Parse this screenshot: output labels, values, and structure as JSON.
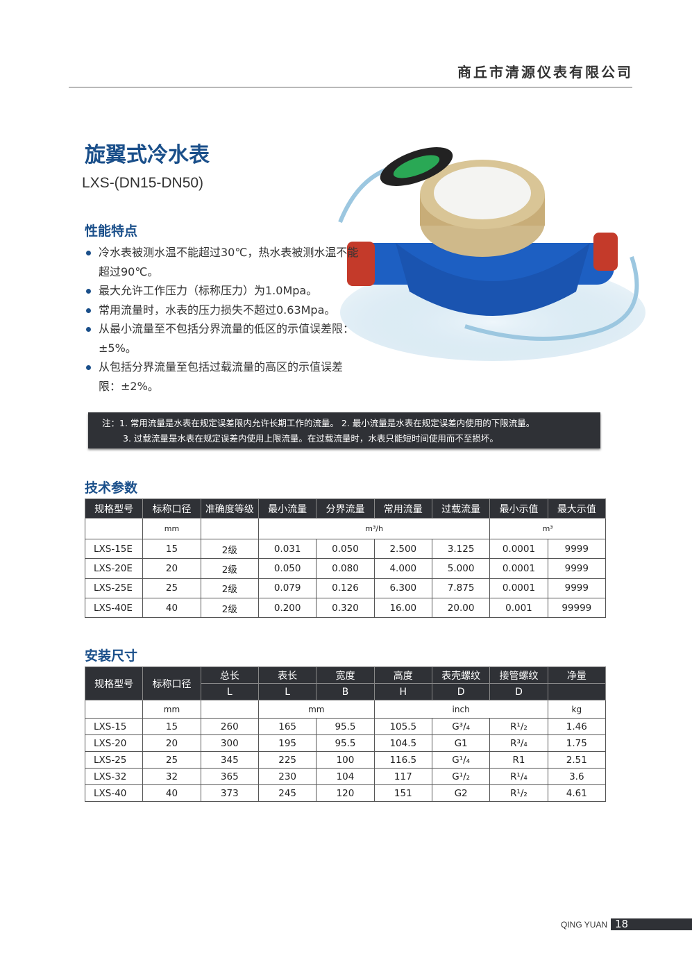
{
  "header": {
    "company": "商丘市清源仪表有限公司"
  },
  "product": {
    "title": "旋翼式冷水表",
    "model": "LXS-(DN15-DN50)"
  },
  "features": {
    "heading": "性能特点",
    "items": [
      "冷水表被测水温不能超过30℃，热水表被测水温不能超过90℃。",
      "最大允许工作压力（标称压力）为1.0Mpa。",
      "常用流量时，水表的压力损失不超过0.63Mpa。",
      "从最小流量至不包括分界流量的低区的示值误差限：±5%。",
      "从包括分界流量至包括过载流量的高区的示值误差限：±2%。"
    ]
  },
  "note": {
    "line1": "注：1. 常用流量是水表在规定误差限内允许长期工作的流量。   2. 最小流量是水表在规定误差内使用的下限流量。",
    "line2": "3. 过载流量是水表在规定误差内使用上限流量。在过载流量时，水表只能短时间使用而不至损坏。"
  },
  "tech": {
    "heading": "技术参数",
    "headers": [
      "规格型号",
      "标称口径",
      "准确度等级",
      "最小流量",
      "分界流量",
      "常用流量",
      "过载流量",
      "最小示值",
      "最大示值"
    ],
    "units": {
      "diameter": "mm",
      "flow": "m³/h",
      "reading": "m³"
    },
    "rows": [
      [
        "LXS-15E",
        "15",
        "2级",
        "0.031",
        "0.050",
        "2.500",
        "3.125",
        "0.0001",
        "9999"
      ],
      [
        "LXS-20E",
        "20",
        "2级",
        "0.050",
        "0.080",
        "4.000",
        "5.000",
        "0.0001",
        "9999"
      ],
      [
        "LXS-25E",
        "25",
        "2级",
        "0.079",
        "0.126",
        "6.300",
        "7.875",
        "0.0001",
        "9999"
      ],
      [
        "LXS-40E",
        "40",
        "2级",
        "0.200",
        "0.320",
        "16.00",
        "20.00",
        "0.001",
        "99999"
      ]
    ]
  },
  "install": {
    "heading": "安装尺寸",
    "headers": [
      "规格型号",
      "标称口径",
      "总长",
      "表长",
      "宽度",
      "高度",
      "表壳螺纹",
      "接管螺纹",
      "净量"
    ],
    "symbols": [
      "L",
      "L",
      "B",
      "H",
      "D",
      "D",
      ""
    ],
    "units": {
      "diameter": "mm",
      "length": "mm",
      "thread": "inch",
      "weight": "kg"
    },
    "rows": [
      [
        "LXS-15",
        "15",
        "260",
        "165",
        "95.5",
        "105.5",
        "G³/₄",
        "R¹/₂",
        "1.46"
      ],
      [
        "LXS-20",
        "20",
        "300",
        "195",
        "95.5",
        "104.5",
        "G1",
        "R³/₄",
        "1.75"
      ],
      [
        "LXS-25",
        "25",
        "345",
        "225",
        "100",
        "116.5",
        "G¹/₄",
        "R1",
        "2.51"
      ],
      [
        "LXS-32",
        "32",
        "365",
        "230",
        "104",
        "117",
        "G¹/₂",
        "R¹/₄",
        "3.6"
      ],
      [
        "LXS-40",
        "40",
        "373",
        "245",
        "120",
        "151",
        "G2",
        "R¹/₂",
        "4.61"
      ]
    ]
  },
  "footer": {
    "brand": "QING YUAN",
    "page": "18"
  }
}
